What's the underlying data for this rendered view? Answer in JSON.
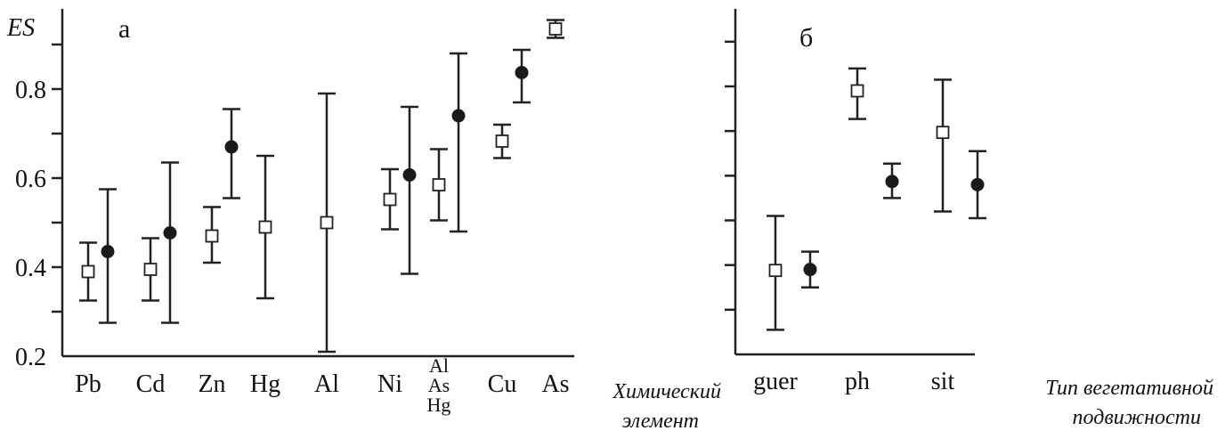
{
  "chart_data": [
    {
      "type": "scatter",
      "panel_label": "а",
      "ylabel": "ES",
      "xlabel": [
        "Химический",
        "элемент"
      ],
      "ylim": [
        0.2,
        0.96
      ],
      "yticks": [
        0.2,
        0.4,
        0.6,
        0.8
      ],
      "y_minor_ticks": [
        0.3,
        0.5,
        0.7,
        0.9
      ],
      "categories": [
        [
          "Pb"
        ],
        [
          "Cd"
        ],
        [
          "Zn"
        ],
        [
          "Hg"
        ],
        [
          "Al"
        ],
        [
          "Ni"
        ],
        [
          "Al",
          "As",
          "Hg"
        ],
        [
          "Cu"
        ],
        [
          "As"
        ]
      ],
      "series": [
        {
          "marker": "open-square",
          "points": [
            {
              "cat": 0,
              "y": 0.39,
              "lo": 0.325,
              "hi": 0.455
            },
            {
              "cat": 1,
              "y": 0.395,
              "lo": 0.325,
              "hi": 0.465
            },
            {
              "cat": 2,
              "y": 0.47,
              "lo": 0.41,
              "hi": 0.535
            },
            {
              "cat": 3,
              "y": 0.49,
              "lo": 0.33,
              "hi": 0.65
            },
            {
              "cat": 4,
              "y": 0.5,
              "lo": 0.21,
              "hi": 0.79
            },
            {
              "cat": 5,
              "y": 0.552,
              "lo": 0.485,
              "hi": 0.62
            },
            {
              "cat": 6,
              "y": 0.585,
              "lo": 0.505,
              "hi": 0.665
            },
            {
              "cat": 7,
              "y": 0.683,
              "lo": 0.645,
              "hi": 0.72
            },
            {
              "cat": 8,
              "y": 0.935,
              "lo": 0.915,
              "hi": 0.955
            }
          ]
        },
        {
          "marker": "filled-circle",
          "points": [
            {
              "cat": 0,
              "y": 0.435,
              "lo": 0.275,
              "hi": 0.575
            },
            {
              "cat": 1,
              "y": 0.477,
              "lo": 0.275,
              "hi": 0.635
            },
            {
              "cat": 2,
              "y": 0.67,
              "lo": 0.555,
              "hi": 0.755
            },
            {
              "cat": 5,
              "y": 0.607,
              "lo": 0.385,
              "hi": 0.76
            },
            {
              "cat": 6,
              "y": 0.74,
              "lo": 0.48,
              "hi": 0.88
            },
            {
              "cat": 7,
              "y": 0.837,
              "lo": 0.77,
              "hi": 0.888
            }
          ]
        }
      ]
    },
    {
      "type": "scatter",
      "panel_label": "б",
      "xlabel": [
        "Тип вегетативной",
        "подвижности"
      ],
      "ylim": [
        0.2,
        0.96
      ],
      "y_major_ticks": [
        0.4,
        0.6,
        0.8
      ],
      "y_minor_ticks": [
        0.3,
        0.5,
        0.7,
        0.9
      ],
      "categories": [
        [
          "guer"
        ],
        [
          "ph"
        ],
        [
          "sit"
        ]
      ],
      "series": [
        {
          "marker": "open-square",
          "points": [
            {
              "cat": 0,
              "y": 0.388,
              "lo": 0.255,
              "hi": 0.51
            },
            {
              "cat": 1,
              "y": 0.79,
              "lo": 0.727,
              "hi": 0.84
            },
            {
              "cat": 2,
              "y": 0.697,
              "lo": 0.52,
              "hi": 0.815
            }
          ]
        },
        {
          "marker": "filled-circle",
          "points": [
            {
              "cat": 0,
              "y": 0.39,
              "lo": 0.35,
              "hi": 0.43
            },
            {
              "cat": 1,
              "y": 0.587,
              "lo": 0.55,
              "hi": 0.627
            },
            {
              "cat": 2,
              "y": 0.58,
              "lo": 0.505,
              "hi": 0.655
            }
          ]
        }
      ]
    }
  ]
}
